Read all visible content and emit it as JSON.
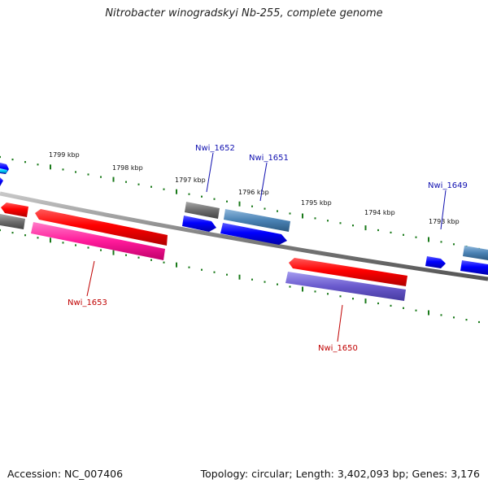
{
  "title": "Nitrobacter winogradskyi Nb-255, complete genome",
  "footer": {
    "accession": "Accession: NC_007406",
    "summary": "Topology: circular; Length: 3,402,093 bp; Genes: 3,176"
  },
  "colors": {
    "background": "#ffffff",
    "backbone": "#808080",
    "tick": "#1a7a1a",
    "forward_label": "#1010b0",
    "reverse_label": "#c00000"
  },
  "ticks": [
    "1799 kbp",
    "1798 kbp",
    "1797 kbp",
    "1796 kbp",
    "1795 kbp",
    "1794 kbp",
    "1793 kbp"
  ],
  "genes": [
    {
      "id": "Nwi_1653",
      "strand": "reverse"
    },
    {
      "id": "Nwi_1652",
      "strand": "forward"
    },
    {
      "id": "Nwi_1651",
      "strand": "forward"
    },
    {
      "id": "Nwi_1650",
      "strand": "reverse"
    },
    {
      "id": "Nwi_1649",
      "strand": "forward"
    }
  ]
}
